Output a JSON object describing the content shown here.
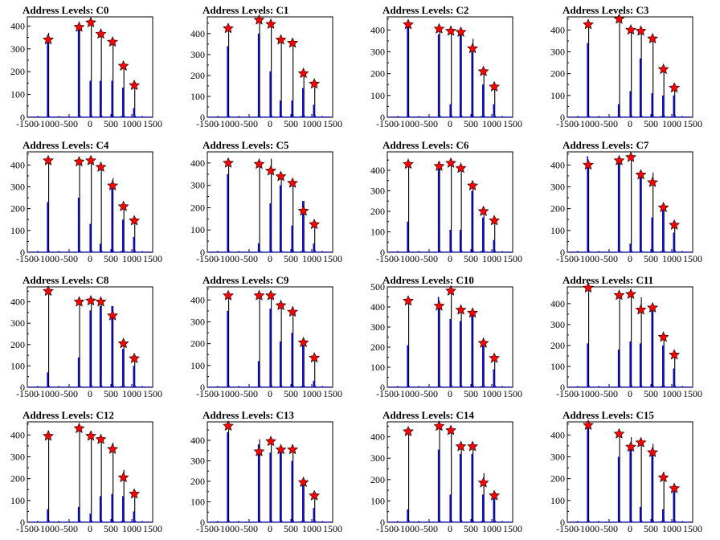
{
  "colors": {
    "background": "#ffffff",
    "axis": "#000000",
    "hist_black": "#000000",
    "hist_blue": "#0000ff",
    "marker_fill": "#ff0000",
    "marker_stroke": "#000000"
  },
  "shared_axes": {
    "xlim": [
      -1500,
      1500
    ],
    "xticks": [
      -1500,
      -1000,
      -500,
      0,
      500,
      1000,
      1500
    ],
    "xtick_labels": [
      "-1500",
      "-1000",
      "-500",
      "0",
      "500",
      "1000",
      "1500"
    ]
  },
  "chart_data": [
    {
      "type": "bar",
      "title": "Address Levels: C0",
      "ylim": [
        0,
        440
      ],
      "yticks": [
        0,
        100,
        200,
        300,
        400
      ],
      "ytick_labels": [
        "0",
        "100",
        "200",
        "300",
        "400"
      ],
      "peak_x": [
        -1000,
        -260,
        20,
        260,
        540,
        800,
        1060
      ],
      "black_values": [
        370,
        410,
        420,
        380,
        345,
        235,
        150
      ],
      "blue_values": [
        360,
        400,
        160,
        160,
        160,
        130,
        40
      ],
      "marker_values": [
        340,
        395,
        415,
        365,
        330,
        225,
        140
      ]
    },
    {
      "type": "bar",
      "title": "Address Levels: C1",
      "ylim": [
        0,
        480
      ],
      "yticks": [
        0,
        100,
        200,
        300,
        400
      ],
      "ytick_labels": [
        "0",
        "100",
        "200",
        "300",
        "400"
      ],
      "peak_x": [
        -1000,
        -260,
        20,
        260,
        540,
        800,
        1060
      ],
      "black_values": [
        440,
        470,
        460,
        385,
        370,
        225,
        160
      ],
      "blue_values": [
        340,
        400,
        220,
        80,
        80,
        140,
        60
      ],
      "marker_values": [
        425,
        465,
        445,
        370,
        355,
        210,
        160
      ]
    },
    {
      "type": "bar",
      "title": "Address Levels: C2",
      "ylim": [
        0,
        460
      ],
      "yticks": [
        0,
        100,
        200,
        300,
        400
      ],
      "ytick_labels": [
        "0",
        "100",
        "200",
        "300",
        "400"
      ],
      "peak_x": [
        -1000,
        -260,
        20,
        260,
        540,
        800,
        1060
      ],
      "black_values": [
        440,
        415,
        405,
        400,
        360,
        215,
        150
      ],
      "blue_values": [
        420,
        380,
        60,
        390,
        300,
        150,
        60
      ],
      "marker_values": [
        425,
        405,
        395,
        390,
        315,
        210,
        140
      ]
    },
    {
      "type": "bar",
      "title": "Address Levels: C3",
      "ylim": [
        0,
        460
      ],
      "yticks": [
        0,
        100,
        200,
        300,
        400
      ],
      "ytick_labels": [
        "0",
        "100",
        "200",
        "300",
        "400"
      ],
      "peak_x": [
        -1000,
        -260,
        20,
        260,
        540,
        800,
        1060
      ],
      "black_values": [
        440,
        460,
        410,
        410,
        370,
        230,
        145
      ],
      "blue_values": [
        340,
        60,
        120,
        270,
        110,
        100,
        100
      ],
      "marker_values": [
        425,
        450,
        400,
        395,
        360,
        220,
        135
      ]
    },
    {
      "type": "bar",
      "title": "Address Levels: C4",
      "ylim": [
        0,
        460
      ],
      "yticks": [
        0,
        100,
        200,
        300,
        400
      ],
      "ytick_labels": [
        "0",
        "100",
        "200",
        "300",
        "400"
      ],
      "peak_x": [
        -1000,
        -260,
        20,
        260,
        540,
        800,
        1060
      ],
      "black_values": [
        430,
        430,
        420,
        395,
        340,
        220,
        150
      ],
      "blue_values": [
        230,
        250,
        130,
        40,
        320,
        150,
        70
      ],
      "marker_values": [
        420,
        415,
        420,
        390,
        305,
        210,
        145
      ]
    },
    {
      "type": "bar",
      "title": "Address Levels: C5",
      "ylim": [
        0,
        450
      ],
      "yticks": [
        0,
        100,
        200,
        300,
        400
      ],
      "ytick_labels": [
        "0",
        "100",
        "200",
        "300",
        "400"
      ],
      "peak_x": [
        -1000,
        -260,
        20,
        260,
        540,
        800,
        1060
      ],
      "black_values": [
        420,
        410,
        420,
        350,
        320,
        230,
        140
      ],
      "blue_values": [
        350,
        40,
        220,
        300,
        120,
        230,
        40
      ],
      "marker_values": [
        400,
        395,
        365,
        340,
        310,
        185,
        125
      ]
    },
    {
      "type": "bar",
      "title": "Address Levels: C6",
      "ylim": [
        0,
        490
      ],
      "yticks": [
        0,
        100,
        200,
        300,
        400
      ],
      "ytick_labels": [
        "0",
        "100",
        "200",
        "300",
        "400"
      ],
      "peak_x": [
        -1000,
        -260,
        20,
        260,
        540,
        800,
        1060
      ],
      "black_values": [
        440,
        430,
        450,
        420,
        340,
        220,
        170
      ],
      "blue_values": [
        150,
        440,
        110,
        110,
        300,
        170,
        60
      ],
      "marker_values": [
        430,
        420,
        435,
        410,
        325,
        200,
        155
      ]
    },
    {
      "type": "bar",
      "title": "Address Levels: C7",
      "ylim": [
        0,
        460
      ],
      "yticks": [
        0,
        100,
        200,
        300,
        400
      ],
      "ytick_labels": [
        "0",
        "100",
        "200",
        "300",
        "400"
      ],
      "peak_x": [
        -1000,
        -260,
        20,
        260,
        540,
        800,
        1060
      ],
      "black_values": [
        410,
        430,
        450,
        370,
        365,
        220,
        140
      ],
      "blue_values": [
        440,
        420,
        40,
        360,
        160,
        200,
        90
      ],
      "marker_values": [
        400,
        420,
        435,
        355,
        320,
        205,
        125
      ]
    },
    {
      "type": "bar",
      "title": "Address Levels: C8",
      "ylim": [
        0,
        470
      ],
      "yticks": [
        0,
        100,
        200,
        300,
        400
      ],
      "ytick_labels": [
        "0",
        "100",
        "200",
        "300",
        "400"
      ],
      "peak_x": [
        -1000,
        -260,
        20,
        260,
        540,
        800,
        1060
      ],
      "black_values": [
        460,
        410,
        420,
        410,
        380,
        215,
        150
      ],
      "blue_values": [
        70,
        140,
        360,
        380,
        380,
        180,
        100
      ],
      "marker_values": [
        450,
        400,
        405,
        400,
        335,
        205,
        135
      ]
    },
    {
      "type": "bar",
      "title": "Address Levels: C9",
      "ylim": [
        0,
        460
      ],
      "yticks": [
        0,
        100,
        200,
        300,
        400
      ],
      "ytick_labels": [
        "0",
        "100",
        "200",
        "300",
        "400"
      ],
      "peak_x": [
        -1000,
        -260,
        20,
        260,
        540,
        800,
        1060
      ],
      "black_values": [
        430,
        430,
        430,
        380,
        370,
        215,
        140
      ],
      "blue_values": [
        350,
        120,
        360,
        210,
        250,
        200,
        30
      ],
      "marker_values": [
        420,
        420,
        420,
        375,
        345,
        205,
        135
      ]
    },
    {
      "type": "bar",
      "title": "Address Levels: C10",
      "ylim": [
        0,
        500
      ],
      "yticks": [
        0,
        100,
        200,
        300,
        400,
        500
      ],
      "ytick_labels": [
        "0",
        "100",
        "200",
        "300",
        "400",
        "500"
      ],
      "peak_x": [
        -1000,
        -260,
        20,
        260,
        540,
        800,
        1060
      ],
      "black_values": [
        440,
        420,
        490,
        400,
        380,
        230,
        160
      ],
      "blue_values": [
        210,
        450,
        340,
        330,
        360,
        220,
        90
      ],
      "marker_values": [
        430,
        405,
        480,
        385,
        370,
        220,
        145
      ]
    },
    {
      "type": "bar",
      "title": "Address Levels: C11",
      "ylim": [
        0,
        480
      ],
      "yticks": [
        0,
        100,
        200,
        300,
        400
      ],
      "ytick_labels": [
        "0",
        "100",
        "200",
        "300",
        "400"
      ],
      "peak_x": [
        -1000,
        -260,
        20,
        260,
        540,
        800,
        1060
      ],
      "black_values": [
        480,
        455,
        460,
        430,
        395,
        250,
        165
      ],
      "blue_values": [
        210,
        180,
        220,
        210,
        380,
        200,
        90
      ],
      "marker_values": [
        475,
        440,
        445,
        370,
        380,
        240,
        155
      ]
    },
    {
      "type": "bar",
      "title": "Address Levels: C12",
      "ylim": [
        0,
        460
      ],
      "yticks": [
        0,
        100,
        200,
        300,
        400
      ],
      "ytick_labels": [
        "0",
        "100",
        "200",
        "300",
        "400"
      ],
      "peak_x": [
        -1000,
        -260,
        20,
        260,
        540,
        800,
        1060
      ],
      "black_values": [
        420,
        440,
        415,
        395,
        365,
        240,
        140
      ],
      "blue_values": [
        60,
        70,
        40,
        120,
        130,
        120,
        50
      ],
      "marker_values": [
        395,
        430,
        395,
        380,
        335,
        205,
        130
      ]
    },
    {
      "type": "bar",
      "title": "Address Levels: C13",
      "ylim": [
        0,
        490
      ],
      "yticks": [
        0,
        100,
        200,
        300,
        400
      ],
      "ytick_labels": [
        "0",
        "100",
        "200",
        "300",
        "400"
      ],
      "peak_x": [
        -1000,
        -260,
        20,
        260,
        540,
        800,
        1060
      ],
      "black_values": [
        490,
        405,
        410,
        370,
        365,
        210,
        140
      ],
      "blue_values": [
        440,
        380,
        340,
        360,
        300,
        200,
        70
      ],
      "marker_values": [
        470,
        345,
        395,
        355,
        355,
        195,
        130
      ]
    },
    {
      "type": "bar",
      "title": "Address Levels: C14",
      "ylim": [
        0,
        470
      ],
      "yticks": [
        0,
        100,
        200,
        300,
        400
      ],
      "ytick_labels": [
        "0",
        "100",
        "200",
        "300",
        "400"
      ],
      "peak_x": [
        -1000,
        -260,
        20,
        260,
        540,
        800,
        1060
      ],
      "black_values": [
        440,
        460,
        440,
        365,
        360,
        230,
        140
      ],
      "blue_values": [
        60,
        340,
        130,
        320,
        320,
        130,
        110
      ],
      "marker_values": [
        425,
        450,
        430,
        355,
        355,
        185,
        125
      ]
    },
    {
      "type": "bar",
      "title": "Address Levels: C15",
      "ylim": [
        0,
        460
      ],
      "yticks": [
        0,
        100,
        200,
        300,
        400
      ],
      "ytick_labels": [
        "0",
        "100",
        "200",
        "300",
        "400"
      ],
      "peak_x": [
        -1000,
        -260,
        20,
        260,
        540,
        800,
        1060
      ],
      "black_values": [
        460,
        420,
        390,
        375,
        360,
        230,
        170
      ],
      "blue_values": [
        440,
        300,
        360,
        70,
        310,
        60,
        140
      ],
      "marker_values": [
        445,
        405,
        345,
        365,
        320,
        205,
        155
      ]
    }
  ]
}
